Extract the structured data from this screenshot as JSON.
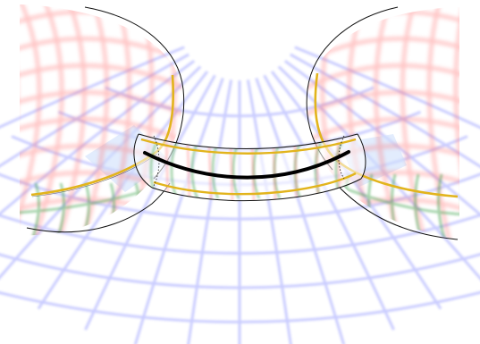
{
  "figure": {
    "colors": {
      "background": "#ffffff",
      "grid_blue": "#5b63ff",
      "grid_red": "#ff6b6b",
      "grid_green": "#3aa24a",
      "boundary_yellow": "#e2b41c",
      "outline_black": "#111111",
      "sheet_lightblue": "#cfe0fb",
      "core_curve": "#000000"
    },
    "elements": {
      "left_sphere": "left-sphere-cap",
      "right_sphere": "right-sphere-cap",
      "handle_tube": "connecting-tube",
      "core_curve": "tube-core-curve",
      "ambient_grid": "ambient-curvilinear-grid"
    }
  }
}
